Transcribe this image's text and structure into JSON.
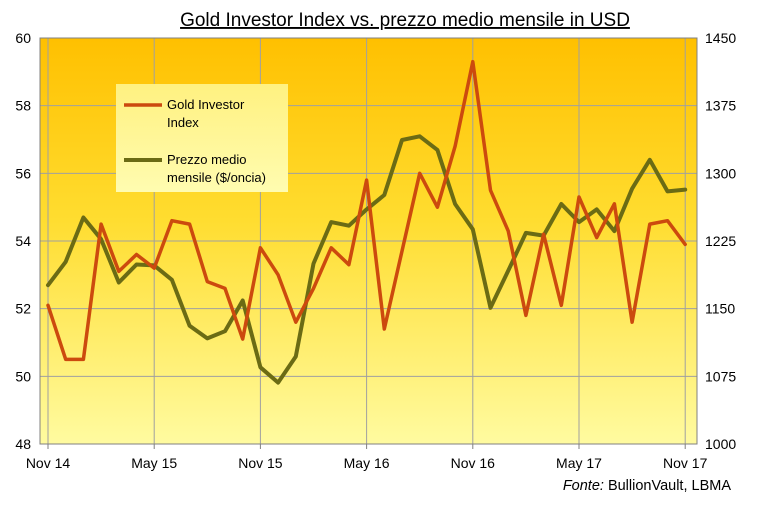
{
  "chart_data": {
    "type": "line",
    "title": "Gold Investor  Index vs. prezzo medio mensile in USD",
    "x": [
      "Nov 14",
      "Dec 14",
      "Jan 15",
      "Feb 15",
      "Mar 15",
      "Apr 15",
      "May 15",
      "Jun 15",
      "Jul 15",
      "Aug 15",
      "Sep 15",
      "Oct 15",
      "Nov 15",
      "Dec 15",
      "Jan 16",
      "Feb 16",
      "Mar 16",
      "Apr 16",
      "May 16",
      "Jun 16",
      "Jul 16",
      "Aug 16",
      "Sep 16",
      "Oct 16",
      "Nov 16",
      "Dec 16",
      "Jan 17",
      "Feb 17",
      "Mar 17",
      "Apr 17",
      "May 17",
      "Jun 17",
      "Jul 17",
      "Aug 17",
      "Sep 17",
      "Oct 17",
      "Nov 17"
    ],
    "xtick_labels": [
      "Nov 14",
      "May 15",
      "Nov 15",
      "May 16",
      "Nov 16",
      "May 17",
      "Nov 17"
    ],
    "y_left": {
      "min": 48,
      "max": 60,
      "step": 2,
      "ticks": [
        "48",
        "50",
        "52",
        "54",
        "56",
        "58",
        "60"
      ]
    },
    "y_right": {
      "min": 1000,
      "max": 1450,
      "step": 75,
      "ticks": [
        "1000",
        "1075",
        "1150",
        "1225",
        "1300",
        "1375",
        "1450"
      ]
    },
    "series": [
      {
        "name": "Gold Investor Index",
        "axis": "left",
        "color": "#CC4A0E",
        "values": [
          52.1,
          50.5,
          50.5,
          54.5,
          53.1,
          53.6,
          53.2,
          54.6,
          54.5,
          52.8,
          52.6,
          51.1,
          53.8,
          53.0,
          51.6,
          52.6,
          53.8,
          53.3,
          55.8,
          51.4,
          53.7,
          56.0,
          55.0,
          56.8,
          59.3,
          55.5,
          54.3,
          51.8,
          54.2,
          52.1,
          55.3,
          54.1,
          55.1,
          51.6,
          54.5,
          54.6,
          53.9
        ]
      },
      {
        "name": "Prezzo medio mensile ($/oncia)",
        "axis": "right",
        "color": "#6B6B14",
        "values": [
          1176,
          1202,
          1251,
          1227,
          1179,
          1199,
          1198,
          1182,
          1131,
          1117,
          1125,
          1159,
          1085,
          1068,
          1097,
          1200,
          1246,
          1242,
          1260,
          1276,
          1337,
          1341,
          1326,
          1266,
          1238,
          1151,
          1192,
          1234,
          1231,
          1266,
          1246,
          1260,
          1236,
          1283,
          1315,
          1280,
          1282
        ]
      }
    ],
    "legend": {
      "placement": "top-left",
      "entries": [
        "Gold Investor Index",
        "Prezzo medio mensile ($/oncia)"
      ],
      "lines": [
        [
          "Gold Investor",
          "Index"
        ],
        [
          "Prezzo medio",
          "mensile ($/oncia)"
        ]
      ]
    },
    "grid": true,
    "source_label": "Fonte:",
    "source_text": " BullionVault, LBMA"
  }
}
